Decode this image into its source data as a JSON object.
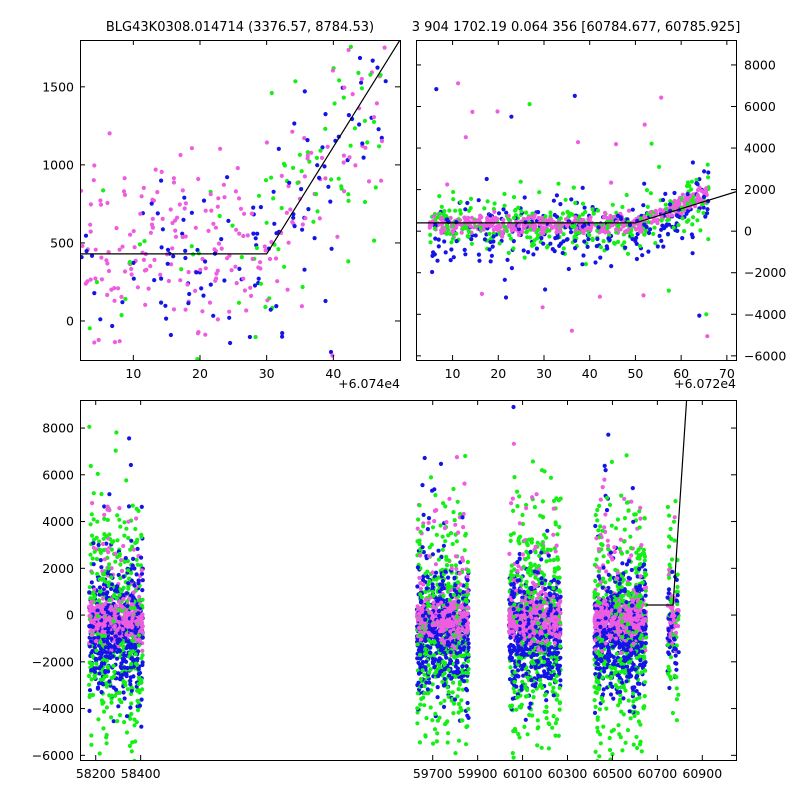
{
  "chart_data": [
    {
      "id": "top-left",
      "type": "scatter",
      "title": "BLG43K0308.014714 (3376.57, 8784.53)",
      "x_offset_label": "+6.074e4",
      "xlim": [
        2,
        50
      ],
      "ylim": [
        -250,
        1800
      ],
      "x_ticks": [
        10,
        20,
        30,
        40
      ],
      "x_tick_labels": [
        "10",
        "20",
        "30",
        "40"
      ],
      "y_ticks": [
        0,
        500,
        1000,
        1500
      ],
      "y_tick_labels": [
        "0",
        "500",
        "1000",
        "1500"
      ],
      "y_axis_side": "left",
      "series": [
        {
          "name": "blue",
          "color": "#1414e6"
        },
        {
          "name": "green",
          "color": "#14f014"
        },
        {
          "name": "magenta",
          "color": "#ee5ce0"
        }
      ],
      "model_line": {
        "x": [
          2,
          30,
          50
        ],
        "y": [
          430,
          430,
          1800
        ]
      }
    },
    {
      "id": "top-right",
      "type": "scatter",
      "title": "3 904 1702.19 0.064 356 [60784.677, 60785.925]",
      "x_offset_label": "+6.072e4",
      "xlim": [
        2,
        72
      ],
      "ylim": [
        -6200,
        9200
      ],
      "x_ticks": [
        10,
        20,
        30,
        40,
        50,
        60,
        70
      ],
      "x_tick_labels": [
        "10",
        "20",
        "30",
        "40",
        "50",
        "60",
        "70"
      ],
      "y_ticks": [
        -6000,
        -4000,
        -2000,
        0,
        2000,
        4000,
        6000,
        8000
      ],
      "y_tick_labels": [
        "−6000",
        "−4000",
        "−2000",
        "0",
        "2000",
        "4000",
        "6000",
        "8000"
      ],
      "y_axis_side": "right",
      "series": [
        {
          "name": "blue",
          "color": "#1414e6"
        },
        {
          "name": "green",
          "color": "#14f014"
        },
        {
          "name": "magenta",
          "color": "#ee5ce0"
        }
      ],
      "model_line": {
        "x": [
          2,
          50,
          72
        ],
        "y": [
          400,
          400,
          1900
        ]
      }
    },
    {
      "id": "bottom",
      "type": "scatter",
      "title": "",
      "xlim": [
        58130,
        61050
      ],
      "ylim": [
        -6200,
        9200
      ],
      "x_ticks": [
        58200,
        58400,
        59700,
        59900,
        60100,
        60300,
        60500,
        60700,
        60900
      ],
      "x_tick_labels": [
        "58200",
        "58400",
        "59700",
        "59900",
        "60100",
        "60300",
        "60500",
        "60700",
        "60900"
      ],
      "y_ticks": [
        -6000,
        -4000,
        -2000,
        0,
        2000,
        4000,
        6000,
        8000
      ],
      "y_tick_labels": [
        "−6000",
        "−4000",
        "−2000",
        "0",
        "2000",
        "4000",
        "6000",
        "8000"
      ],
      "y_axis_side": "left",
      "series": [
        {
          "name": "blue",
          "color": "#1414e6"
        },
        {
          "name": "green",
          "color": "#14f014"
        },
        {
          "name": "magenta",
          "color": "#ee5ce0"
        }
      ],
      "seasons": [
        [
          58170,
          58410
        ],
        [
          59630,
          59860
        ],
        [
          60040,
          60270
        ],
        [
          60420,
          60650
        ],
        [
          60745,
          60795
        ]
      ],
      "model_line": {
        "x": [
          60650,
          60770,
          60830
        ],
        "y": [
          430,
          430,
          9200
        ]
      }
    }
  ]
}
